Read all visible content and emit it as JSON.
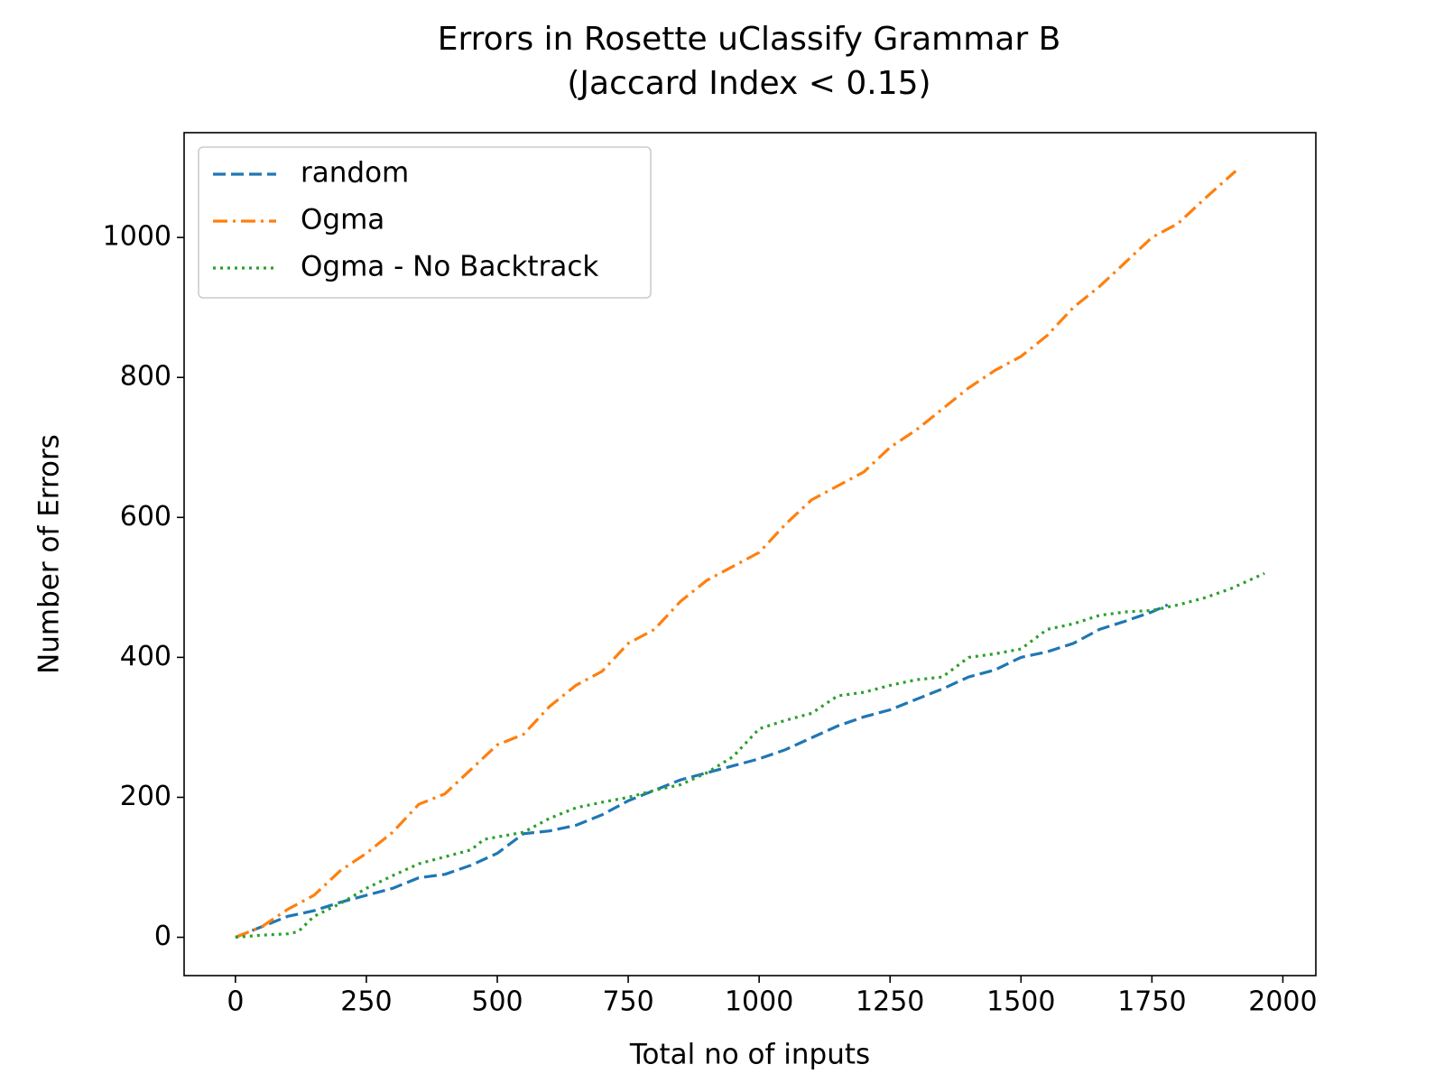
{
  "chart_data": {
    "type": "line",
    "title": "Errors in Rosette uClassify Grammar B",
    "subtitle": "(Jaccard Index < 0.15)",
    "xlabel": "Total no of inputs",
    "ylabel": "Number of Errors",
    "xlim": [
      -98,
      2063
    ],
    "ylim": [
      -54.75,
      1149.75
    ],
    "xticks": [
      0,
      250,
      500,
      750,
      1000,
      1250,
      1500,
      1750,
      2000
    ],
    "yticks": [
      0,
      200,
      400,
      600,
      800,
      1000
    ],
    "legend": "upper left",
    "series": [
      {
        "name": "random",
        "color": "#1f77b4",
        "linestyle": "dashed",
        "x": [
          0,
          50,
          100,
          150,
          200,
          250,
          300,
          350,
          400,
          450,
          500,
          550,
          600,
          650,
          700,
          750,
          800,
          850,
          900,
          950,
          1000,
          1050,
          1100,
          1150,
          1200,
          1250,
          1300,
          1350,
          1400,
          1450,
          1500,
          1550,
          1600,
          1650,
          1700,
          1750,
          1780
        ],
        "values": [
          0,
          15,
          30,
          38,
          50,
          60,
          70,
          85,
          90,
          103,
          120,
          148,
          152,
          160,
          175,
          195,
          210,
          225,
          235,
          245,
          255,
          268,
          285,
          302,
          315,
          325,
          340,
          355,
          372,
          382,
          400,
          408,
          420,
          440,
          452,
          465,
          475
        ]
      },
      {
        "name": "Ogma",
        "color": "#ff7f0e",
        "linestyle": "dashdot",
        "x": [
          0,
          50,
          100,
          150,
          200,
          250,
          300,
          350,
          400,
          450,
          500,
          550,
          600,
          650,
          700,
          750,
          800,
          850,
          900,
          950,
          1000,
          1050,
          1100,
          1150,
          1200,
          1250,
          1300,
          1350,
          1400,
          1450,
          1500,
          1550,
          1600,
          1650,
          1700,
          1750,
          1800,
          1850,
          1910
        ],
        "values": [
          0,
          15,
          40,
          60,
          95,
          120,
          150,
          190,
          205,
          240,
          275,
          290,
          330,
          360,
          380,
          420,
          440,
          480,
          510,
          530,
          550,
          590,
          625,
          645,
          665,
          700,
          725,
          755,
          785,
          810,
          830,
          860,
          900,
          930,
          965,
          1000,
          1020,
          1055,
          1095
        ]
      },
      {
        "name": "Ogma - No Backtrack",
        "color": "#2ca02c",
        "linestyle": "dotted",
        "x": [
          0,
          50,
          100,
          120,
          150,
          200,
          250,
          300,
          350,
          400,
          450,
          475,
          550,
          600,
          650,
          700,
          750,
          800,
          850,
          900,
          950,
          1000,
          1050,
          1100,
          1150,
          1200,
          1250,
          1300,
          1350,
          1400,
          1450,
          1500,
          1550,
          1600,
          1650,
          1700,
          1750,
          1800,
          1850,
          1900,
          1965
        ],
        "values": [
          0,
          3,
          5,
          8,
          30,
          48,
          70,
          88,
          105,
          115,
          125,
          140,
          150,
          170,
          185,
          193,
          200,
          210,
          218,
          235,
          258,
          298,
          310,
          320,
          345,
          350,
          360,
          368,
          372,
          400,
          405,
          412,
          440,
          448,
          460,
          465,
          467,
          475,
          485,
          498,
          520
        ]
      }
    ]
  }
}
